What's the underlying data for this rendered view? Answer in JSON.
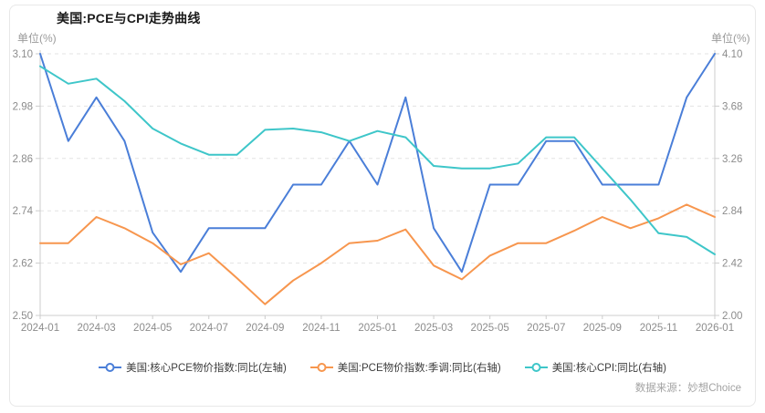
{
  "card": {
    "title": "美国:PCE与CPI走势曲线",
    "unit_left": "单位(%)",
    "unit_right": "单位(%)",
    "source": "数据来源：妙想Choice"
  },
  "chart_data": {
    "type": "line",
    "title": "美国:PCE与CPI走势曲线",
    "grid": true,
    "legend_position": "bottom",
    "x": [
      "2024-01",
      "2024-02",
      "2024-03",
      "2024-04",
      "2024-05",
      "2024-06",
      "2024-07",
      "2024-08",
      "2024-09",
      "2024-10",
      "2024-11",
      "2024-12",
      "2025-01",
      "2025-02",
      "2025-03",
      "2025-04",
      "2025-05",
      "2025-06",
      "2025-07",
      "2025-08",
      "2025-09",
      "2025-10",
      "2025-11",
      "2025-12",
      "2026-01"
    ],
    "x_label_every": 2,
    "left_axis": {
      "label": "单位(%)",
      "min": 2.5,
      "max": 3.1,
      "tick_labels": [
        "3.10",
        "2.98",
        "2.86",
        "2.74",
        "2.62",
        "2.50"
      ]
    },
    "right_axis": {
      "label": "单位(%)",
      "min": 2.0,
      "max": 4.1,
      "tick_labels": [
        "4.10",
        "3.68",
        "3.26",
        "2.84",
        "2.42",
        "2.00"
      ]
    },
    "series": [
      {
        "name": "美国:核心PCE物价指数:同比(左轴)",
        "axis": "left",
        "color": "#4A7ED8",
        "values": [
          3.1,
          2.9,
          3.0,
          2.9,
          2.69,
          2.6,
          2.7,
          2.7,
          2.7,
          2.8,
          2.8,
          2.9,
          2.8,
          3.0,
          2.7,
          2.6,
          2.8,
          2.8,
          2.9,
          2.9,
          2.8,
          2.8,
          2.8,
          3.0,
          3.1
        ]
      },
      {
        "name": "美国:PCE物价指数:季调:同比(右轴)",
        "axis": "right",
        "color": "#F7964E",
        "values": [
          2.58,
          2.58,
          2.79,
          2.7,
          2.58,
          2.41,
          2.5,
          2.3,
          2.09,
          2.28,
          2.42,
          2.58,
          2.6,
          2.69,
          2.4,
          2.29,
          2.48,
          2.58,
          2.58,
          2.68,
          2.79,
          2.7,
          2.78,
          2.89,
          2.79
        ]
      },
      {
        "name": "美国:核心CPI:同比(右轴)",
        "axis": "right",
        "color": "#3EC6C9",
        "values": [
          4.0,
          3.86,
          3.9,
          3.72,
          3.5,
          3.38,
          3.29,
          3.29,
          3.49,
          3.5,
          3.47,
          3.4,
          3.48,
          3.43,
          3.2,
          3.18,
          3.18,
          3.22,
          3.43,
          3.43,
          3.18,
          2.93,
          2.66,
          2.63,
          2.49
        ]
      }
    ],
    "colors": {
      "grid": "#e3e3e3",
      "axis_line": "#cccccc",
      "tick_label": "#8c8c8c"
    }
  }
}
